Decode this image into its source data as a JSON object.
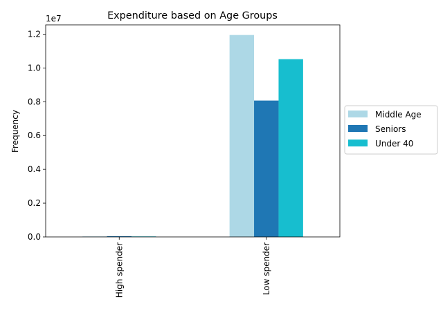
{
  "chart_data": {
    "type": "bar",
    "title": "Expenditure based on Age Groups",
    "xlabel": "",
    "ylabel": "Frequency",
    "y_offset_label": "1e7",
    "categories": [
      "High spender",
      "Low spender"
    ],
    "series": [
      {
        "name": "Middle Age",
        "color": "#add8e6",
        "values": [
          30000,
          11950000
        ]
      },
      {
        "name": "Seniors",
        "color": "#1f77b4",
        "values": [
          40000,
          8070000
        ]
      },
      {
        "name": "Under 40",
        "color": "#17becf",
        "values": [
          30000,
          10520000
        ]
      }
    ],
    "ylim": [
      0,
      12550000
    ],
    "yticks": [
      0,
      2000000,
      4000000,
      6000000,
      8000000,
      10000000,
      12000000
    ],
    "ytick_labels": [
      "0.0",
      "0.2",
      "0.4",
      "0.6",
      "0.8",
      "1.0",
      "1.2"
    ],
    "grid": false,
    "legend_position": "center-right, outside plot"
  }
}
